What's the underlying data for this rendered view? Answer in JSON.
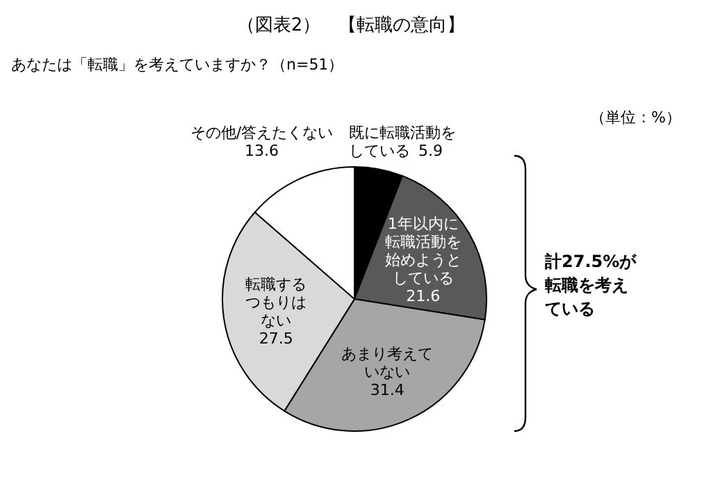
{
  "chart_data": {
    "type": "pie",
    "title": "（図表2）　【転職の意向】",
    "subtitle": "あなたは「転職」を考えていますか？（n=51）",
    "categories": [
      "既に転職活動をしている",
      "1年以内に転職活動を始めようとしている",
      "あまり考えていない",
      "転職するつもりはない",
      "その他/答えたくない"
    ],
    "values": [
      5.9,
      21.6,
      31.4,
      27.5,
      13.6
    ],
    "colors": [
      "#000000",
      "#595959",
      "#a6a6a6",
      "#d9d9d9",
      "#ffffff"
    ],
    "data_labels": true,
    "annotations": [
      "（単位：%）",
      "計27.5%が転職を考えている"
    ]
  }
}
